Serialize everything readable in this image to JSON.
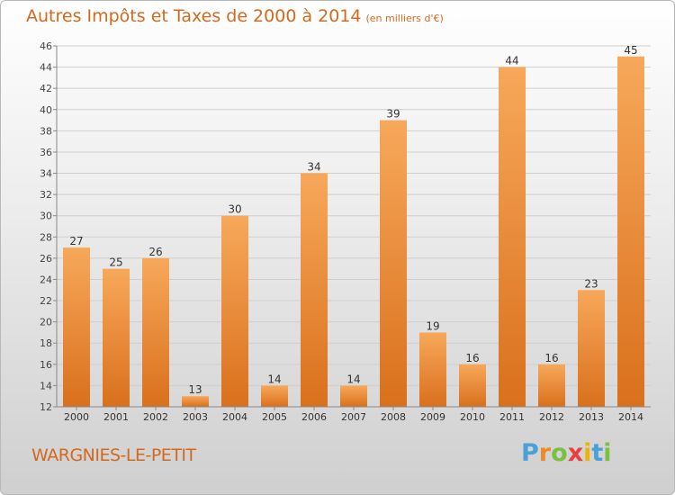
{
  "title": "Autres Impôts et Taxes de 2000 à 2014",
  "subtitle": "(en milliers d'€)",
  "city": "WARGNIES-LE-PETIT",
  "logo": {
    "letters": [
      "P",
      "r",
      "o",
      "x",
      "i",
      "t",
      "i"
    ],
    "colors": [
      "#4aa0d8",
      "#f08a24",
      "#7ac142",
      "#e83f3f",
      "#f0b400",
      "#4aa0d8",
      "#7ac142"
    ]
  },
  "colors": {
    "bar_top": "#f7a85a",
    "bar_bottom": "#d9701c",
    "title": "#d2691e",
    "grid": "#cfcfcf"
  },
  "chart_data": {
    "type": "bar",
    "categories": [
      "2000",
      "2001",
      "2002",
      "2003",
      "2004",
      "2005",
      "2006",
      "2007",
      "2008",
      "2009",
      "2010",
      "2011",
      "2012",
      "2013",
      "2014"
    ],
    "values": [
      27,
      25,
      26,
      13,
      30,
      14,
      34,
      14,
      39,
      19,
      16,
      44,
      16,
      23,
      45
    ],
    "title": "Autres Impôts et Taxes de 2000 à 2014",
    "xlabel": "",
    "ylabel": "",
    "ylim": [
      12,
      46
    ],
    "yticks": [
      12,
      14,
      16,
      18,
      20,
      22,
      24,
      26,
      28,
      30,
      32,
      34,
      36,
      38,
      40,
      42,
      44,
      46
    ],
    "grid": true
  }
}
